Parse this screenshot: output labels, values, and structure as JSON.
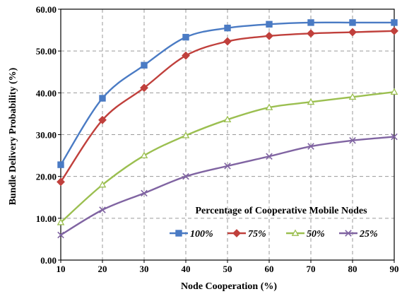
{
  "chart_data": {
    "type": "line",
    "xlabel": "Node Cooperation (%)",
    "ylabel": "Bundle Delivery Probability (%)",
    "x": [
      10,
      20,
      30,
      40,
      50,
      60,
      70,
      80,
      90
    ],
    "x_ticks": [
      "10",
      "20",
      "30",
      "40",
      "50",
      "60",
      "70",
      "80",
      "90"
    ],
    "y_ticks": [
      "0.00",
      "10.00",
      "20.00",
      "30.00",
      "40.00",
      "50.00",
      "60.00"
    ],
    "xlim": [
      10,
      90
    ],
    "ylim": [
      0,
      60
    ],
    "grid": true,
    "legend": {
      "title": "Percentage of Cooperative Mobile Nodes",
      "placement": "bottom-right"
    },
    "series": [
      {
        "name": "100%",
        "color": "#4a7bc4",
        "marker": "square",
        "values": [
          22.8,
          38.7,
          46.6,
          53.3,
          55.5,
          56.4,
          56.8,
          56.8,
          56.8
        ]
      },
      {
        "name": "75%",
        "color": "#c0403c",
        "marker": "diamond",
        "values": [
          18.7,
          33.5,
          41.2,
          48.9,
          52.3,
          53.6,
          54.2,
          54.5,
          54.8
        ]
      },
      {
        "name": "50%",
        "color": "#9bbf50",
        "marker": "triangle",
        "values": [
          9.0,
          18.0,
          25.0,
          29.8,
          33.6,
          36.5,
          37.8,
          39.0,
          40.2
        ]
      },
      {
        "name": "25%",
        "color": "#8064a2",
        "marker": "x",
        "values": [
          6.0,
          12.0,
          16.0,
          20.0,
          22.5,
          24.8,
          27.2,
          28.6,
          29.5
        ]
      }
    ]
  }
}
